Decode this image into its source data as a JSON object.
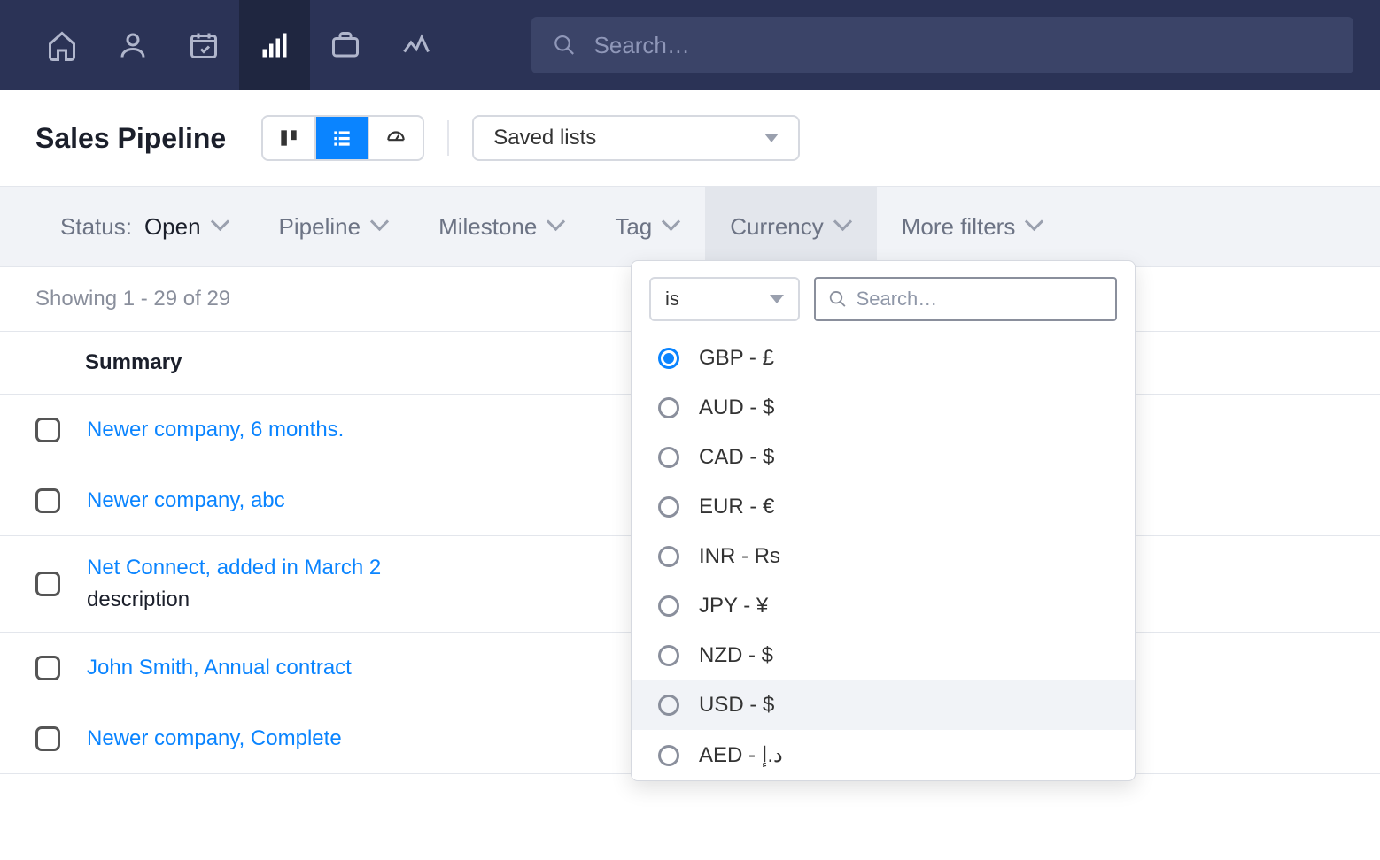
{
  "navbar": {
    "search_placeholder": "Search…"
  },
  "titlebar": {
    "title": "Sales Pipeline",
    "saved_lists_label": "Saved lists"
  },
  "filters": {
    "status_label": "Status:",
    "status_value": "Open",
    "pipeline": "Pipeline",
    "milestone": "Milestone",
    "tag": "Tag",
    "currency": "Currency",
    "more": "More filters"
  },
  "results": {
    "showing_text": "Showing 1 - 29 of 29"
  },
  "table": {
    "summary_header": "Summary",
    "rows": [
      {
        "link": "Newer company, 6 months.",
        "desc": ""
      },
      {
        "link": "Newer company, abc",
        "desc": ""
      },
      {
        "link": "Net Connect, added in March 2",
        "desc": "description"
      },
      {
        "link": "John Smith, Annual contract",
        "desc": ""
      },
      {
        "link": "Newer company, Complete",
        "desc": ""
      }
    ]
  },
  "dropdown": {
    "operator": "is",
    "search_placeholder": "Search…",
    "options": [
      {
        "label": "GBP - £",
        "selected": true,
        "hover": false
      },
      {
        "label": "AUD - $",
        "selected": false,
        "hover": false
      },
      {
        "label": "CAD - $",
        "selected": false,
        "hover": false
      },
      {
        "label": "EUR - €",
        "selected": false,
        "hover": false
      },
      {
        "label": "INR - Rs",
        "selected": false,
        "hover": false
      },
      {
        "label": "JPY - ¥",
        "selected": false,
        "hover": false
      },
      {
        "label": "NZD - $",
        "selected": false,
        "hover": false
      },
      {
        "label": "USD - $",
        "selected": false,
        "hover": true
      },
      {
        "label": "AED - د.إ",
        "selected": false,
        "hover": false
      }
    ]
  }
}
